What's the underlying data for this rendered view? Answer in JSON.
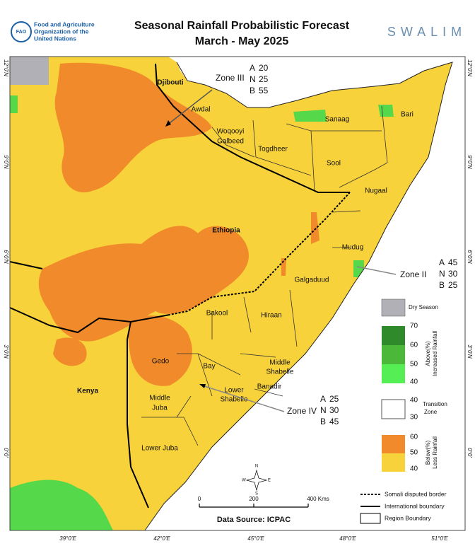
{
  "header": {
    "logo_text": "FAO",
    "organization": [
      "Food and Agriculture",
      "Organization of the",
      "United Nations"
    ],
    "title": "Seasonal Rainfall Probabilistic Forecast",
    "subtitle": "March - May 2025",
    "brand": "SWALIM"
  },
  "map": {
    "lat_labels": [
      "12°0'N",
      "9°0'N",
      "6°0'N",
      "3°0'N",
      "0°0'"
    ],
    "lon_labels": [
      "39°0'E",
      "42°0'E",
      "45°0'E",
      "48°0'E",
      "51°0'E"
    ],
    "countries": [
      "Djibouti",
      "Ethiopia",
      "Kenya"
    ],
    "regions": [
      "Awdal",
      "Woqooyi",
      "Galbeed",
      "Togdheer",
      "Sanaag",
      "Bari",
      "Sool",
      "Nugaal",
      "Mudug",
      "Galgaduud",
      "Hiraan",
      "Bakool",
      "Gedo",
      "Bay",
      "Middle",
      "Shabelle",
      "Banadir",
      "Lower",
      "Shabelle",
      "Middle",
      "Juba",
      "Lower Juba"
    ],
    "zones": [
      {
        "name": "Zone III",
        "rows": [
          {
            "label": "A",
            "value": 20
          },
          {
            "label": "N",
            "value": 25
          },
          {
            "label": "B",
            "value": 55
          }
        ]
      },
      {
        "name": "Zone II",
        "rows": [
          {
            "label": "A",
            "value": 45
          },
          {
            "label": "N",
            "value": 30
          },
          {
            "label": "B",
            "value": 25
          }
        ]
      },
      {
        "name": "Zone IV",
        "rows": [
          {
            "label": "A",
            "value": 25
          },
          {
            "label": "N",
            "value": 30
          },
          {
            "label": "B",
            "value": 45
          }
        ]
      }
    ]
  },
  "legend": {
    "dry_season": "Dry Season",
    "above": {
      "title": [
        "Above(%)",
        "Increased Rainfall"
      ],
      "levels": [
        70,
        60,
        50,
        40
      ]
    },
    "transition": {
      "title": [
        "Transition",
        "Zone"
      ],
      "levels": [
        40,
        30
      ]
    },
    "below": {
      "title": [
        "Below(%)",
        "Less Rainfall"
      ],
      "levels": [
        60,
        50,
        40
      ]
    },
    "lines": [
      "Somali disputed border",
      "International boundary",
      "Region Boundary"
    ]
  },
  "scale": {
    "labels": [
      "0",
      "200",
      "400 Kms"
    ]
  },
  "compass": [
    "N",
    "E",
    "S",
    "W"
  ],
  "source": "Data Source: ICPAC"
}
